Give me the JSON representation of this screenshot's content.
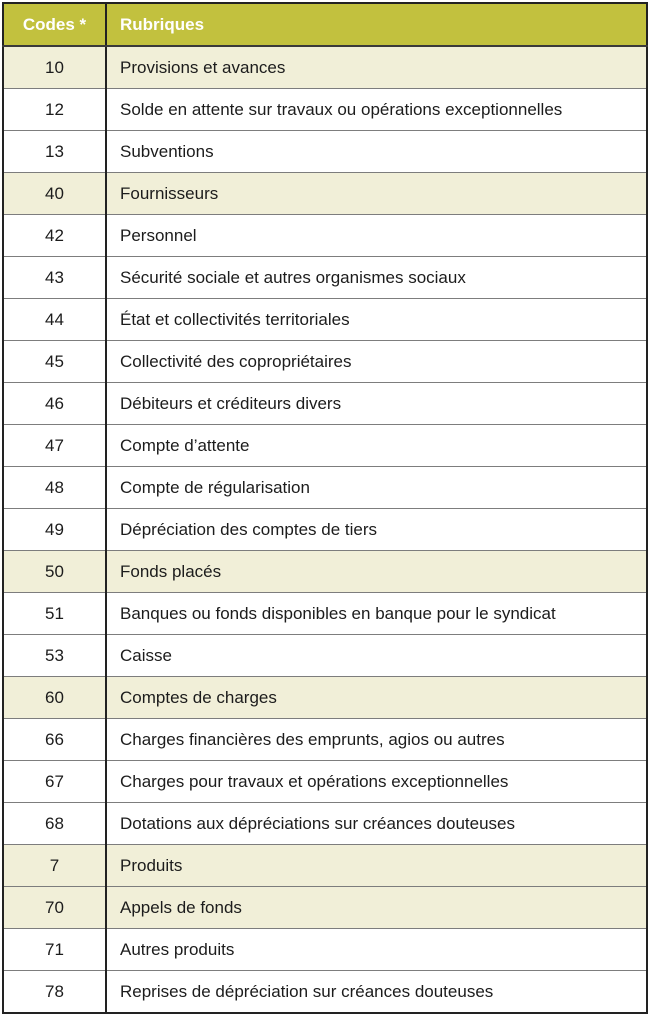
{
  "table": {
    "columns": [
      {
        "label": "Codes *"
      },
      {
        "label": "Rubriques"
      }
    ],
    "rows": [
      {
        "code": "10",
        "label": "Provisions et avances",
        "highlighted": true
      },
      {
        "code": "12",
        "label": "Solde en attente sur travaux ou opérations exceptionnelles",
        "highlighted": false
      },
      {
        "code": "13",
        "label": "Subventions",
        "highlighted": false
      },
      {
        "code": "40",
        "label": "Fournisseurs",
        "highlighted": true
      },
      {
        "code": "42",
        "label": "Personnel",
        "highlighted": false
      },
      {
        "code": "43",
        "label": "Sécurité sociale et autres organismes sociaux",
        "highlighted": false
      },
      {
        "code": "44",
        "label": "État et collectivités territoriales",
        "highlighted": false
      },
      {
        "code": "45",
        "label": "Collectivité des copropriétaires",
        "highlighted": false
      },
      {
        "code": "46",
        "label": "Débiteurs et créditeurs divers",
        "highlighted": false
      },
      {
        "code": "47",
        "label": "Compte d’attente",
        "highlighted": false
      },
      {
        "code": "48",
        "label": "Compte de régularisation",
        "highlighted": false
      },
      {
        "code": "49",
        "label": "Dépréciation des comptes de tiers",
        "highlighted": false
      },
      {
        "code": "50",
        "label": "Fonds placés",
        "highlighted": true
      },
      {
        "code": "51",
        "label": "Banques ou fonds disponibles en banque pour le syndicat",
        "highlighted": false
      },
      {
        "code": "53",
        "label": "Caisse",
        "highlighted": false
      },
      {
        "code": "60",
        "label": "Comptes de charges",
        "highlighted": true
      },
      {
        "code": "66",
        "label": "Charges financières des emprunts, agios ou autres",
        "highlighted": false
      },
      {
        "code": "67",
        "label": "Charges pour travaux et opérations exceptionnelles",
        "highlighted": false
      },
      {
        "code": "68",
        "label": "Dotations aux dépréciations sur créances douteuses",
        "highlighted": false
      },
      {
        "code": "7",
        "label": "Produits",
        "highlighted": true
      },
      {
        "code": "70",
        "label": "Appels de fonds",
        "highlighted": true
      },
      {
        "code": "71",
        "label": "Autres produits",
        "highlighted": false
      },
      {
        "code": "78",
        "label": "Reprises de dépréciation sur créances douteuses",
        "highlighted": false
      }
    ]
  },
  "colors": {
    "header_background": "#c2c13e",
    "header_text": "#ffffff",
    "highlight_row_background": "#f1efd8",
    "row_background": "#ffffff",
    "outer_border": "#222222",
    "row_divider": "#7d7d7d",
    "body_text": "#1c1c1c"
  }
}
